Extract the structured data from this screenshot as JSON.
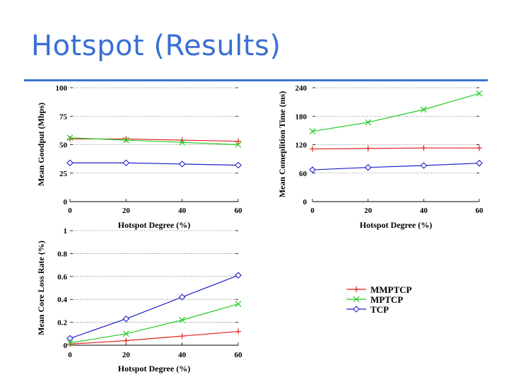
{
  "slide": {
    "title": "Hotspot (Results)"
  },
  "colors": {
    "title": "#3a6fd3",
    "MMPTCP": "#e02020",
    "MPTCP": "#22cc22",
    "TCP": "#2020c8",
    "grid": "#444444"
  },
  "legend": {
    "position": "bottom-right",
    "entries": [
      "MMPTCP",
      "MPTCP",
      "TCP"
    ]
  },
  "chart_data": [
    {
      "type": "line",
      "id": "goodput",
      "ylabel": "Mean Goodput (Mbps)",
      "xlabel": "Hotspot Degree (%)",
      "x": [
        0,
        20,
        40,
        60
      ],
      "xticks": [
        "0",
        "20",
        "40",
        "60"
      ],
      "yticks": [
        0,
        25,
        50,
        75,
        100
      ],
      "yticklabels": [
        "0",
        "25",
        "50",
        "75",
        "100"
      ],
      "ylim": [
        0,
        100
      ],
      "grid": "dashed horizontal",
      "series": [
        {
          "name": "MMPTCP",
          "values": [
            55,
            55,
            54,
            53
          ],
          "marker": "plus"
        },
        {
          "name": "MPTCP",
          "values": [
            56,
            54,
            52,
            50
          ],
          "marker": "x"
        },
        {
          "name": "TCP",
          "values": [
            34,
            34,
            33,
            32
          ],
          "marker": "diamond"
        }
      ]
    },
    {
      "type": "line",
      "id": "completion",
      "ylabel": "Mean Comeplition Time (ms)",
      "xlabel": "Hotspot Degree (%)",
      "x": [
        0,
        20,
        40,
        60
      ],
      "xticks": [
        "0",
        "20",
        "40",
        "60"
      ],
      "yticks": [
        0,
        60,
        120,
        180,
        240
      ],
      "yticklabels": [
        "0",
        "60",
        "120",
        "180",
        "240"
      ],
      "ylim": [
        0,
        240
      ],
      "grid": "dashed horizontal",
      "series": [
        {
          "name": "MMPTCP",
          "values": [
            111,
            112,
            113,
            113
          ],
          "marker": "plus"
        },
        {
          "name": "MPTCP",
          "values": [
            148,
            167,
            194,
            228
          ],
          "marker": "x"
        },
        {
          "name": "TCP",
          "values": [
            67,
            72,
            76,
            81
          ],
          "marker": "diamond"
        }
      ]
    },
    {
      "type": "line",
      "id": "loss",
      "ylabel": "Mean Core Loss Rate (%)",
      "xlabel": "Hotspot Degree (%)",
      "x": [
        0,
        20,
        40,
        60
      ],
      "xticks": [
        "0",
        "20",
        "40",
        "60"
      ],
      "yticks": [
        0,
        0.2,
        0.4,
        0.6,
        0.8,
        1
      ],
      "yticklabels": [
        "0",
        "0.2",
        "0.4",
        "0.6",
        "0.8",
        "1"
      ],
      "ylim": [
        0,
        1
      ],
      "grid": "dashed horizontal",
      "series": [
        {
          "name": "MMPTCP",
          "values": [
            0.01,
            0.04,
            0.08,
            0.12
          ],
          "marker": "plus"
        },
        {
          "name": "MPTCP",
          "values": [
            0.02,
            0.1,
            0.22,
            0.36
          ],
          "marker": "x"
        },
        {
          "name": "TCP",
          "values": [
            0.06,
            0.23,
            0.42,
            0.61
          ],
          "marker": "diamond"
        }
      ]
    }
  ]
}
